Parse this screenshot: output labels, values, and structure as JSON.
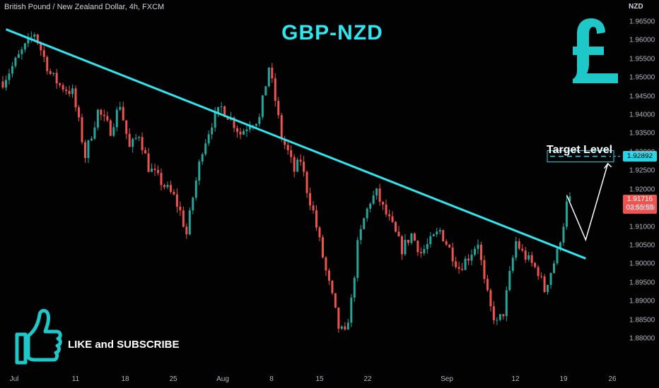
{
  "header": {
    "instrument": "British Pound / New Zealand Dollar, 4h, FXCM",
    "currency": "NZD"
  },
  "chart_title": "GBP-NZD",
  "annotations": {
    "target_label": "Target Level",
    "cta": "LIKE and SUBSCRIBE",
    "pound_icon": "pound-sign-icon",
    "thumb_icon": "thumbs-up-icon"
  },
  "price_tags": {
    "target": "1.92892",
    "current": "1.91716",
    "countdown": "03:55:55"
  },
  "colors": {
    "up": "#26a69a",
    "down": "#ef5350",
    "trendline": "#2ee6f0",
    "accent": "#1ec8c8",
    "target_tag": "#22d6e6",
    "current_tag": "#ef5350"
  },
  "chart_data": {
    "type": "candlestick",
    "title": "GBP-NZD",
    "x_ticks": [
      "Jul",
      "11",
      "18",
      "25",
      "Aug",
      "8",
      "15",
      "22",
      "Sep",
      "12",
      "19",
      "26"
    ],
    "y_ticks": [
      "1.96500",
      "1.96000",
      "1.95500",
      "1.95000",
      "1.94500",
      "1.94000",
      "1.93500",
      "1.93000",
      "1.92500",
      "1.92000",
      "1.91500",
      "1.91000",
      "1.90500",
      "1.90000",
      "1.89500",
      "1.89000",
      "1.88500",
      "1.88000"
    ],
    "ylim": [
      1.8785,
      1.9675
    ],
    "close_path": [
      [
        0,
        1.949
      ],
      [
        6,
        1.957
      ],
      [
        10,
        1.962
      ],
      [
        15,
        1.951
      ],
      [
        18,
        1.948
      ],
      [
        22,
        1.946
      ],
      [
        24,
        1.938
      ],
      [
        26,
        1.929
      ],
      [
        30,
        1.941
      ],
      [
        34,
        1.936
      ],
      [
        37,
        1.943
      ],
      [
        40,
        1.931
      ],
      [
        43,
        1.935
      ],
      [
        46,
        1.926
      ],
      [
        50,
        1.922
      ],
      [
        54,
        1.918
      ],
      [
        56,
        1.914
      ],
      [
        58,
        1.908
      ],
      [
        60,
        1.918
      ],
      [
        63,
        1.931
      ],
      [
        66,
        1.938
      ],
      [
        69,
        1.942
      ],
      [
        72,
        1.939
      ],
      [
        75,
        1.935
      ],
      [
        78,
        1.938
      ],
      [
        81,
        1.939
      ],
      [
        84,
        1.953
      ],
      [
        86,
        1.944
      ],
      [
        88,
        1.934
      ],
      [
        90,
        1.93
      ],
      [
        92,
        1.925
      ],
      [
        94,
        1.928
      ],
      [
        96,
        1.92
      ],
      [
        98,
        1.914
      ],
      [
        100,
        1.906
      ],
      [
        102,
        1.898
      ],
      [
        104,
        1.891
      ],
      [
        106,
        1.883
      ],
      [
        108,
        1.881
      ],
      [
        110,
        1.89
      ],
      [
        112,
        1.905
      ],
      [
        114,
        1.912
      ],
      [
        116,
        1.917
      ],
      [
        118,
        1.919
      ],
      [
        120,
        1.915
      ],
      [
        123,
        1.91
      ],
      [
        126,
        1.904
      ],
      [
        129,
        1.908
      ],
      [
        132,
        1.903
      ],
      [
        135,
        1.906
      ],
      [
        138,
        1.909
      ],
      [
        141,
        1.904
      ],
      [
        144,
        1.899
      ],
      [
        147,
        1.902
      ],
      [
        150,
        1.906
      ],
      [
        152,
        1.895
      ],
      [
        154,
        1.888
      ],
      [
        156,
        1.884
      ],
      [
        158,
        1.887
      ],
      [
        160,
        1.897
      ],
      [
        162,
        1.906
      ],
      [
        164,
        1.903
      ],
      [
        166,
        1.901
      ],
      [
        169,
        1.898
      ],
      [
        171,
        1.893
      ],
      [
        173,
        1.898
      ],
      [
        175,
        1.903
      ],
      [
        177,
        1.911
      ],
      [
        178,
        1.916
      ],
      [
        179,
        1.917
      ]
    ],
    "trendline": {
      "start": [
        1,
        1.963
      ],
      "end": [
        184,
        1.9015
      ]
    },
    "target_level": 1.92892,
    "current_price": 1.91716,
    "projection_path": [
      [
        178,
        1.9185
      ],
      [
        184,
        1.9065
      ],
      [
        191,
        1.927
      ]
    ],
    "target_box": {
      "label": "Target Level",
      "price": 1.92892
    }
  }
}
